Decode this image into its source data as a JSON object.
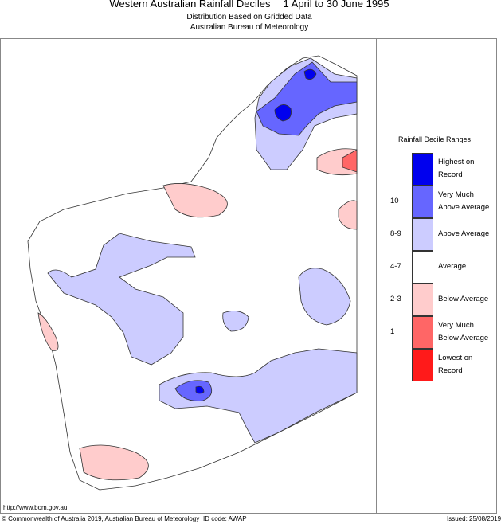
{
  "header": {
    "title": "Western Australian Rainfall Deciles",
    "period": "1 April to 30 June 1995",
    "subtitle1": "Distribution Based on Gridded Data",
    "subtitle2": "Australian Bureau of Meteorology"
  },
  "legend": {
    "title": "Rainfall Decile Ranges",
    "items": [
      {
        "label1": "Highest on",
        "label2": "Record",
        "range": "",
        "color": "#0000ee"
      },
      {
        "label1": "Very Much",
        "label2": "Above Average",
        "range": "10",
        "color": "#6666ff"
      },
      {
        "label1": "Above Average",
        "label2": "",
        "range": "8-9",
        "color": "#ccccff"
      },
      {
        "label1": "Average",
        "label2": "",
        "range": "4-7",
        "color": "#ffffff"
      },
      {
        "label1": "Below Average",
        "label2": "",
        "range": "2-3",
        "color": "#ffcccc"
      },
      {
        "label1": "Very Much",
        "label2": "Below Average",
        "range": "1",
        "color": "#ff6666"
      },
      {
        "label1": "Lowest on",
        "label2": "Record",
        "range": "",
        "color": "#ff1a1a"
      }
    ]
  },
  "footer": {
    "url": "http://www.bom.gov.au",
    "copyright": "© Commonwealth of Australia 2019, Australian Bureau of Meteorology",
    "id_code": "ID code: AWAP",
    "issued": "Issued: 25/08/2019"
  }
}
